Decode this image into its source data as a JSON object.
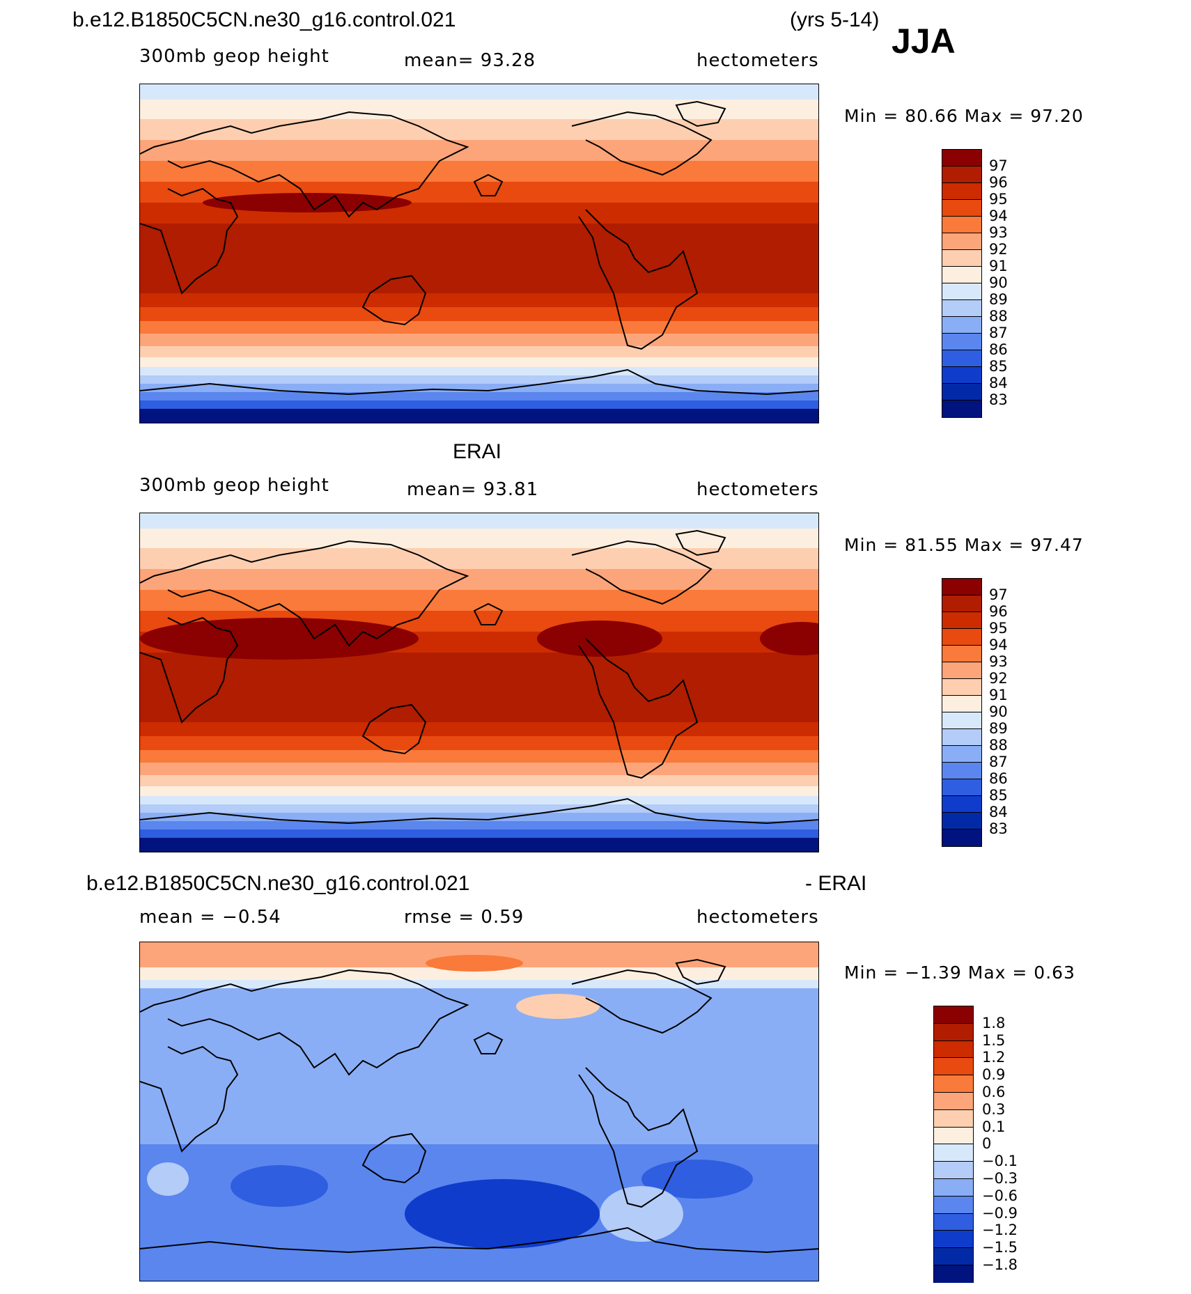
{
  "header": {
    "case_name": "b.e12.B1850C5CN.ne30_g16.control.021",
    "years": "(yrs 5-14)",
    "season": "JJA"
  },
  "panels": [
    {
      "id": "model",
      "subtitle_left": "300mb  geop  height",
      "subtitle_center": "mean=   93.28",
      "units": "hectometers",
      "min_max": "Min  =    80.66  Max  =    97.20",
      "colorbar_labels": [
        "97",
        "96",
        "95",
        "94",
        "93",
        "92",
        "91",
        "90",
        "89",
        "88",
        "87",
        "86",
        "85",
        "84",
        "83"
      ]
    },
    {
      "id": "obs",
      "title": "ERAI",
      "subtitle_left": "300mb  geop  height",
      "subtitle_center": "mean=   93.81",
      "units": "hectometers",
      "min_max": "Min  =    81.55  Max  =    97.47",
      "colorbar_labels": [
        "97",
        "96",
        "95",
        "94",
        "93",
        "92",
        "91",
        "90",
        "89",
        "88",
        "87",
        "86",
        "85",
        "84",
        "83"
      ]
    },
    {
      "id": "diff",
      "title_left": "b.e12.B1850C5CN.ne30_g16.control.021",
      "title_right": "- ERAI",
      "subtitle_left": "mean  =   −0.54",
      "subtitle_center": "rmse  =     0.59",
      "units": "hectometers",
      "min_max": "Min  =   −1.39  Max  =     0.63",
      "colorbar_labels": [
        "1.8",
        "1.5",
        "1.2",
        "0.9",
        "0.6",
        "0.3",
        "0.1",
        "0",
        "−0.1",
        "−0.3",
        "−0.6",
        "−0.9",
        "−1.2",
        "−1.5",
        "−1.8"
      ]
    }
  ],
  "colors": {
    "abs_scale": [
      "#8b0000",
      "#b01d00",
      "#cc2c00",
      "#e84a10",
      "#f97a3a",
      "#fca57a",
      "#fdcfb0",
      "#fdefe0",
      "#d8e8fb",
      "#b3ccf8",
      "#8aaef5",
      "#5a86ee",
      "#2f5ee0",
      "#0f3ccb",
      "#032aa6",
      "#00137e"
    ],
    "diff_scale": [
      "#8b0000",
      "#b01d00",
      "#cc2c00",
      "#e84a10",
      "#f97a3a",
      "#fca57a",
      "#fdcfb0",
      "#fdefe0",
      "#d8e8fb",
      "#b3ccf8",
      "#8aaef5",
      "#5a86ee",
      "#2f5ee0",
      "#0f3ccb",
      "#032aa6",
      "#00137e"
    ]
  }
}
